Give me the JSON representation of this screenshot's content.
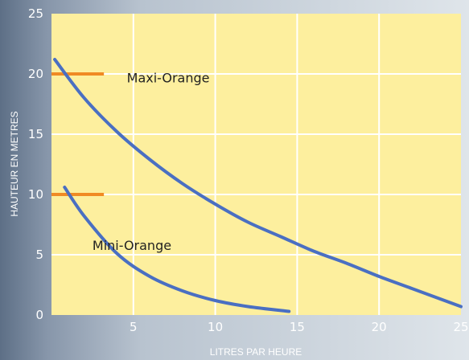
{
  "chart_data": {
    "type": "line",
    "xlabel": "LITRES PAR HEURE",
    "ylabel": "HAUTEUR EN METRES",
    "xlim": [
      0,
      25
    ],
    "ylim": [
      0,
      25
    ],
    "x_ticks": [
      5,
      10,
      15,
      20,
      25
    ],
    "y_ticks": [
      0,
      5,
      10,
      15,
      20,
      25
    ],
    "grid": true,
    "colors": {
      "plot_background": "#fdef9e",
      "grid": "#ffffff",
      "curve": "#4a6fc2",
      "marker": "#f08a24",
      "text": "#ffffff"
    },
    "series": [
      {
        "name": "Maxi-Orange",
        "x": [
          0.2,
          2,
          4,
          6,
          8,
          10,
          12,
          14,
          16,
          18,
          20,
          22,
          25
        ],
        "y": [
          21.2,
          18.0,
          15.2,
          12.9,
          10.9,
          9.2,
          7.7,
          6.5,
          5.3,
          4.3,
          3.2,
          2.2,
          0.7
        ]
      },
      {
        "name": "Mini-Orange",
        "x": [
          0.8,
          2,
          4,
          6,
          8,
          10,
          12,
          14.5
        ],
        "y": [
          10.6,
          8.2,
          5.1,
          3.2,
          2.0,
          1.2,
          0.7,
          0.3
        ]
      }
    ],
    "markers": [
      {
        "y": 20,
        "x_range": [
          0,
          3.2
        ]
      },
      {
        "y": 10,
        "x_range": [
          0,
          3.2
        ]
      }
    ],
    "series_labels": [
      {
        "text": "Maxi-Orange",
        "x": 4.6,
        "y": 19.3
      },
      {
        "text": "Mini-Orange",
        "x": 2.5,
        "y": 5.4
      }
    ]
  }
}
